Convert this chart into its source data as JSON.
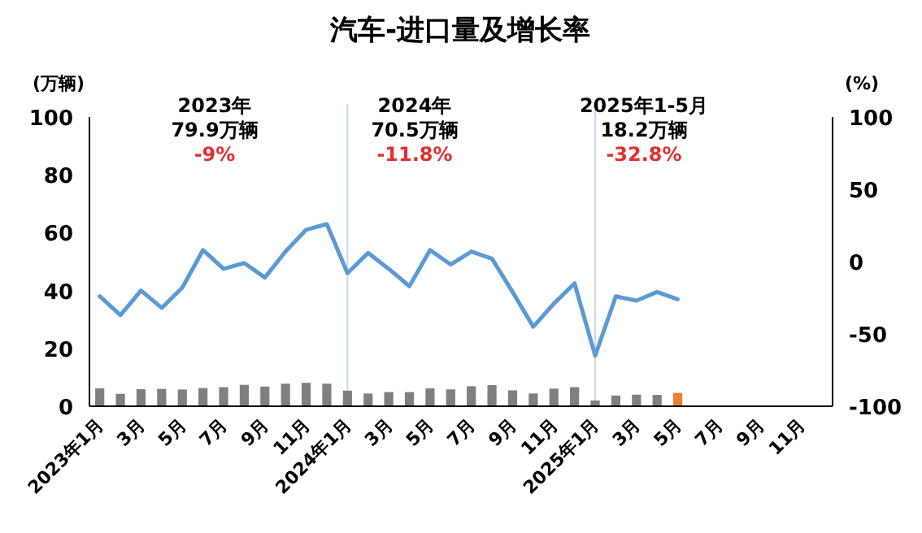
{
  "chart_data": {
    "type": "bar",
    "title": "汽车-进口量及增长率",
    "ylabel": "(万辆)",
    "y2label": "(%)",
    "categories": [
      "2023年1月",
      null,
      "3月",
      null,
      "5月",
      null,
      "7月",
      null,
      "9月",
      null,
      "11月",
      null,
      "2024年1月",
      null,
      "3月",
      null,
      "5月",
      null,
      "7月",
      null,
      "9月",
      null,
      "11月",
      null,
      "2025年1月",
      null,
      "3月",
      null,
      "5月",
      null,
      "7月",
      null,
      "9月",
      null,
      "11月",
      null
    ],
    "series": [
      {
        "colors": [
          "#7f7f7f",
          "#7f7f7f",
          "#7f7f7f",
          "#7f7f7f",
          "#7f7f7f",
          "#7f7f7f",
          "#7f7f7f",
          "#7f7f7f",
          "#7f7f7f",
          "#7f7f7f",
          "#7f7f7f",
          "#7f7f7f",
          "#7f7f7f",
          "#7f7f7f",
          "#7f7f7f",
          "#7f7f7f",
          "#7f7f7f",
          "#7f7f7f",
          "#7f7f7f",
          "#7f7f7f",
          "#7f7f7f",
          "#7f7f7f",
          "#7f7f7f",
          "#7f7f7f",
          "#7f7f7f",
          "#7f7f7f",
          "#7f7f7f",
          "#7f7f7f",
          "#ed7d31",
          null,
          null,
          null,
          null,
          null,
          null,
          null
        ],
        "values": [
          6.2,
          4.3,
          5.9,
          6.0,
          5.8,
          6.3,
          6.6,
          7.4,
          6.8,
          7.8,
          8.1,
          7.8,
          5.4,
          4.4,
          4.9,
          4.9,
          6.2,
          5.8,
          6.9,
          7.3,
          5.5,
          4.4,
          6.1,
          6.6,
          2.0,
          3.7,
          4.0,
          3.9,
          4.6,
          null,
          null,
          null,
          null,
          null,
          null,
          null
        ]
      },
      {
        "type": "line",
        "axis": "y2",
        "color": "#5b9bd5",
        "values": [
          -24,
          -37,
          -20,
          -32,
          -18,
          8,
          -5,
          -1,
          -11,
          7,
          22,
          26,
          -8,
          6,
          -5,
          -17,
          8,
          -2,
          7,
          2,
          -21,
          -45,
          -29,
          -15,
          -65,
          -24,
          -27,
          -21,
          -26,
          null,
          null,
          null,
          null,
          null,
          null,
          null
        ]
      }
    ],
    "ylim": [
      0,
      100
    ],
    "yticks": [
      0,
      20,
      40,
      60,
      80,
      100
    ],
    "y2lim": [
      -100,
      100
    ],
    "y2ticks": [
      -100,
      -50,
      0,
      50,
      100
    ],
    "ref_lines": [
      {
        "axis": "x",
        "value": "2024年1月",
        "color": "#c5dcef"
      },
      {
        "axis": "x",
        "value": "2025年1月",
        "color": "#c5dcef"
      }
    ],
    "annotations": [
      "2023年",
      "79.9万辆",
      "-9%",
      "2024年",
      "70.5万辆",
      "-11.8%",
      "2025年1-5月",
      "18.2万辆",
      "-32.8%"
    ],
    "grid": false
  }
}
